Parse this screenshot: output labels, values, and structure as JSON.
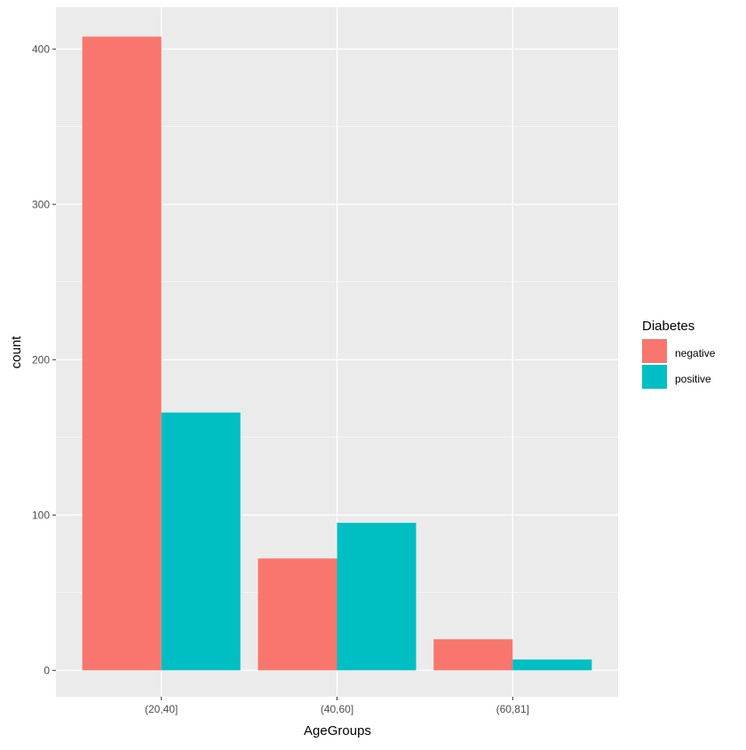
{
  "chart_data": {
    "type": "bar",
    "xlabel": "AgeGroups",
    "ylabel": "count",
    "categories": [
      "(20,40]",
      "(40,60]",
      "(60,81]"
    ],
    "series": [
      {
        "name": "negative",
        "color": "#F8766D",
        "values": [
          408,
          72,
          20
        ]
      },
      {
        "name": "positive",
        "color": "#00BFC4",
        "values": [
          166,
          95,
          7
        ]
      }
    ],
    "ylim": [
      -17,
      427
    ],
    "yticks": [
      0,
      100,
      200,
      300,
      400
    ],
    "ytick_labels": [
      "0",
      "100",
      "200",
      "300",
      "400"
    ],
    "grid": true,
    "panel_background": "#EBEBEB",
    "legend": {
      "title": "Diabetes",
      "position": "right"
    }
  }
}
